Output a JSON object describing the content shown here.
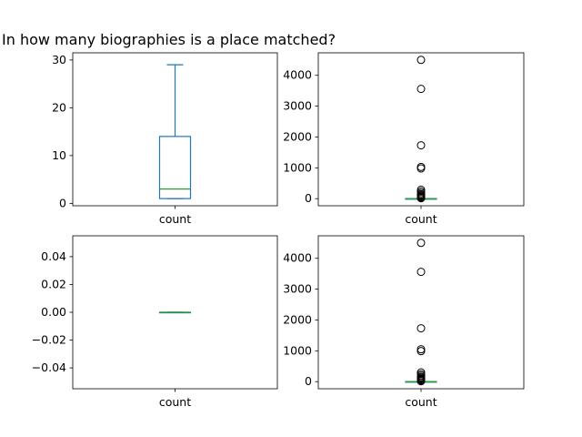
{
  "figure": {
    "title": "In how many biographies is a place matched?"
  },
  "colors": {
    "box": "#1f77b4",
    "median": "#2ca02c",
    "axes": "#000000",
    "flier_edge": "#000000"
  },
  "chart_data": [
    {
      "type": "box",
      "panel": "top-left",
      "categories": [
        "count"
      ],
      "ylim": [
        -0.5,
        31.5
      ],
      "yticks": [
        0,
        10,
        20,
        30
      ],
      "ytick_labels": [
        "0",
        "10",
        "20",
        "30"
      ],
      "box": {
        "whisker_low": 1,
        "q1": 1,
        "median": 3,
        "q3": 14,
        "whisker_high": 29
      },
      "fliers": []
    },
    {
      "type": "box",
      "panel": "top-right",
      "categories": [
        "count"
      ],
      "ylim": [
        -230,
        4730
      ],
      "yticks": [
        0,
        1000,
        2000,
        3000,
        4000
      ],
      "ytick_labels": [
        "0",
        "1000",
        "2000",
        "3000",
        "4000"
      ],
      "box": {
        "whisker_low": 0,
        "q1": 0,
        "median": 0,
        "q3": 0,
        "whisker_high": 0
      },
      "fliers": [
        4500,
        3560,
        1730,
        1030,
        980,
        290,
        230,
        180,
        140,
        110,
        80,
        60,
        40,
        25,
        15
      ]
    },
    {
      "type": "box",
      "panel": "bottom-left",
      "categories": [
        "count"
      ],
      "ylim": [
        -0.055,
        0.055
      ],
      "yticks": [
        -0.04,
        -0.02,
        0.0,
        0.02,
        0.04
      ],
      "ytick_labels": [
        "−0.04",
        "−0.02",
        "0.00",
        "0.02",
        "0.04"
      ],
      "box": {
        "whisker_low": 0,
        "q1": 0,
        "median": 0,
        "q3": 0,
        "whisker_high": 0
      },
      "fliers": []
    },
    {
      "type": "box",
      "panel": "bottom-right",
      "categories": [
        "count"
      ],
      "ylim": [
        -230,
        4730
      ],
      "yticks": [
        0,
        1000,
        2000,
        3000,
        4000
      ],
      "ytick_labels": [
        "0",
        "1000",
        "2000",
        "3000",
        "4000"
      ],
      "box": {
        "whisker_low": 0,
        "q1": 0,
        "median": 0,
        "q3": 0,
        "whisker_high": 0
      },
      "fliers": [
        4500,
        3560,
        1730,
        1050,
        990,
        300,
        240,
        190,
        150,
        120,
        90,
        65,
        45,
        30,
        15
      ]
    }
  ]
}
